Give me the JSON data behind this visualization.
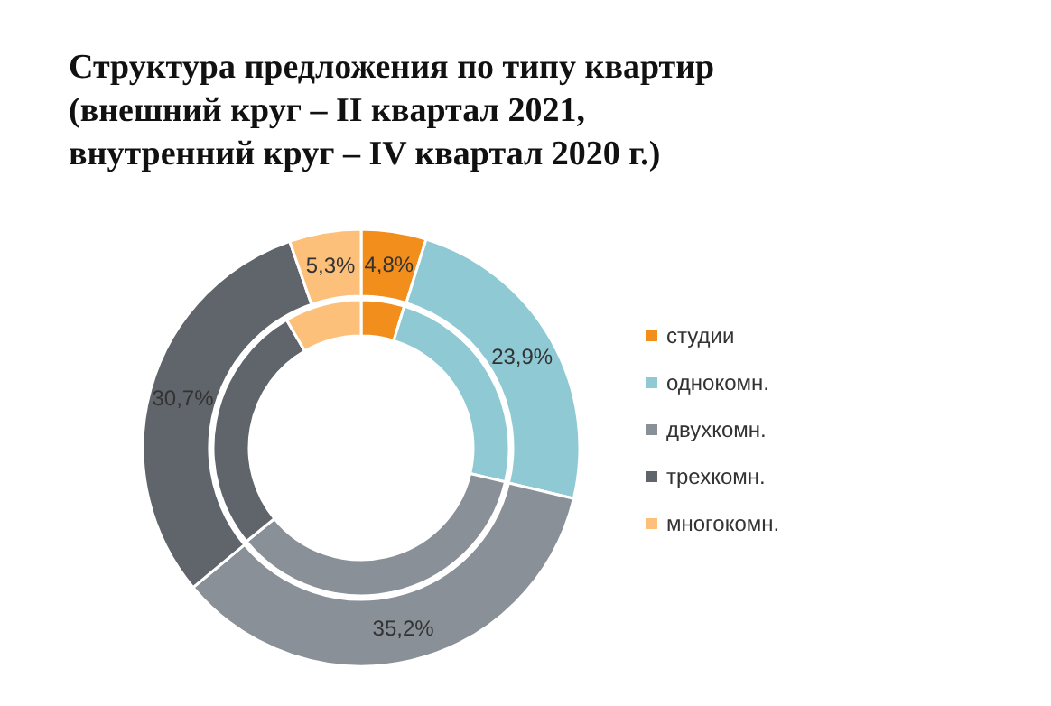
{
  "chart_data": {
    "type": "donut",
    "title": "Структура  предложения по типу квартир\n(внешний круг – II квартал 2021,\nвнутренний круг – IV квартал 2020 г.)",
    "categories": [
      "студии",
      "однокомн.",
      "двухкомн.",
      "трехкомн.",
      "многокомн."
    ],
    "colors": [
      "#f28e1c",
      "#8fc9d3",
      "#8a9097",
      "#5f656b",
      "#fcc07a"
    ],
    "series": [
      {
        "values": [
          4.8,
          23.9,
          35.2,
          30.7,
          5.3
        ],
        "value_labels": [
          "4,8%",
          "23,9%",
          "35,2%",
          "30,7%",
          "5,3%"
        ]
      },
      {
        "values": [
          4.7,
          24,
          35.4,
          27.5,
          8.4
        ]
      }
    ],
    "legend": "right"
  }
}
